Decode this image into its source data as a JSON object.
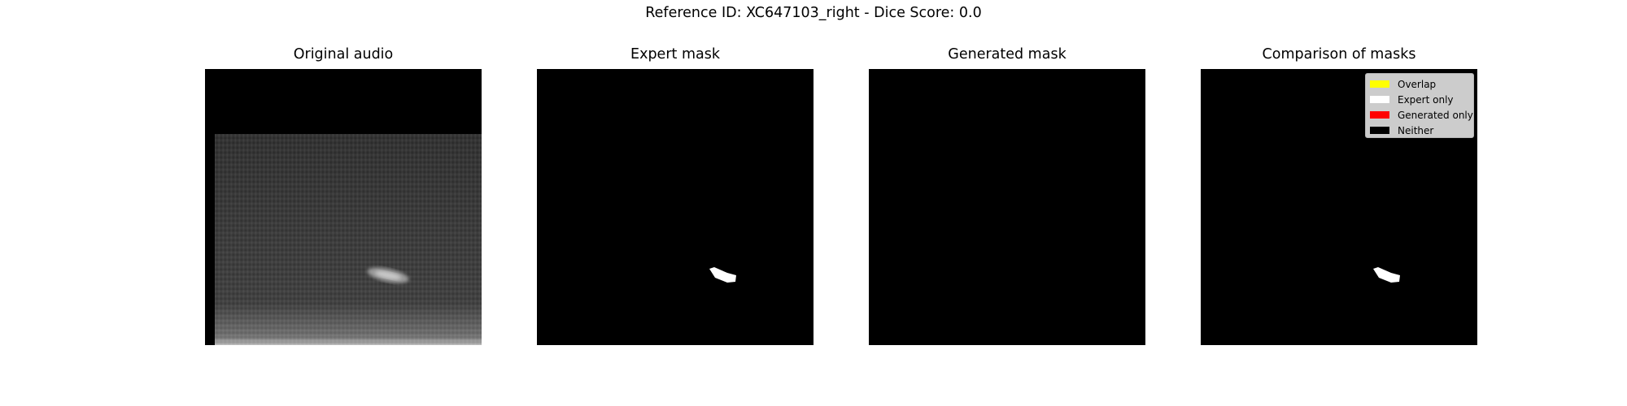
{
  "suptitle": "Reference ID: XC647103_right - Dice Score: 0.0",
  "panels": [
    {
      "title": "Original audio"
    },
    {
      "title": "Expert mask"
    },
    {
      "title": "Generated mask"
    },
    {
      "title": "Comparison of masks"
    }
  ],
  "legend": [
    {
      "label": "Overlap",
      "color": "#ffff00"
    },
    {
      "label": "Expert only",
      "color": "#ffffff"
    },
    {
      "label": "Generated only",
      "color": "#ff0000"
    },
    {
      "label": "Neither",
      "color": "#000000"
    }
  ]
}
